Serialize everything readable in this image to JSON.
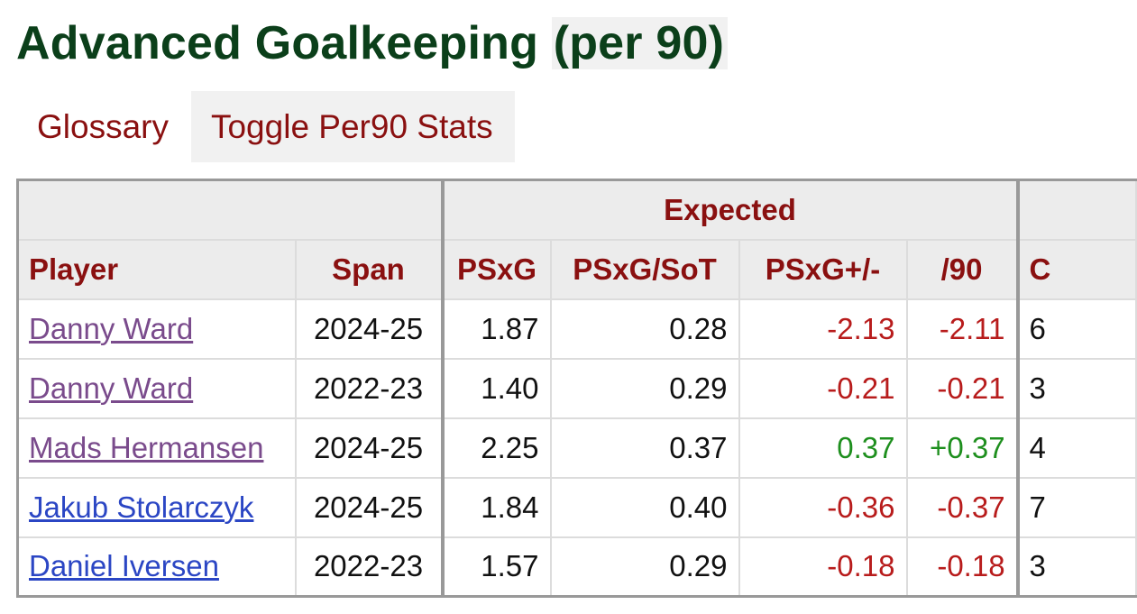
{
  "title": {
    "main": "Advanced Goalkeeping ",
    "highlight": "(per 90)"
  },
  "toolbar": {
    "glossary": "Glossary",
    "toggle": "Toggle Per90 Stats"
  },
  "table": {
    "over_header": "Expected",
    "headers": {
      "player": "Player",
      "span": "Span",
      "psxg": "PSxG",
      "psxg_sot": "PSxG/SoT",
      "psxg_pm": "PSxG+/-",
      "per90": "/90",
      "next": "C"
    },
    "rows": [
      {
        "player": "Danny Ward",
        "span": "2024-25",
        "psxg": "1.87",
        "psxg_sot": "0.28",
        "psxg_pm": "-2.13",
        "per90": "-2.11",
        "next": "6"
      },
      {
        "player": "Danny Ward",
        "span": "2022-23",
        "psxg": "1.40",
        "psxg_sot": "0.29",
        "psxg_pm": "-0.21",
        "per90": "-0.21",
        "next": "3"
      },
      {
        "player": "Mads Hermansen",
        "span": "2024-25",
        "psxg": "2.25",
        "psxg_sot": "0.37",
        "psxg_pm": "0.37",
        "per90": "+0.37",
        "next": "4"
      },
      {
        "player": "Jakub Stolarczyk",
        "span": "2024-25",
        "psxg": "1.84",
        "psxg_sot": "0.40",
        "psxg_pm": "-0.36",
        "per90": "-0.37",
        "next": "7"
      },
      {
        "player": "Daniel Iversen",
        "span": "2022-23",
        "psxg": "1.57",
        "psxg_sot": "0.29",
        "psxg_pm": "-0.18",
        "per90": "-0.18",
        "next": "3"
      }
    ]
  },
  "colors": {
    "title": "#0b3f1a",
    "header_text": "#8a1010",
    "negative": "#b81c1c",
    "positive": "#1e8f1e",
    "link_visited": "#7a4b8c",
    "link_unvisited": "#2b46c4"
  }
}
